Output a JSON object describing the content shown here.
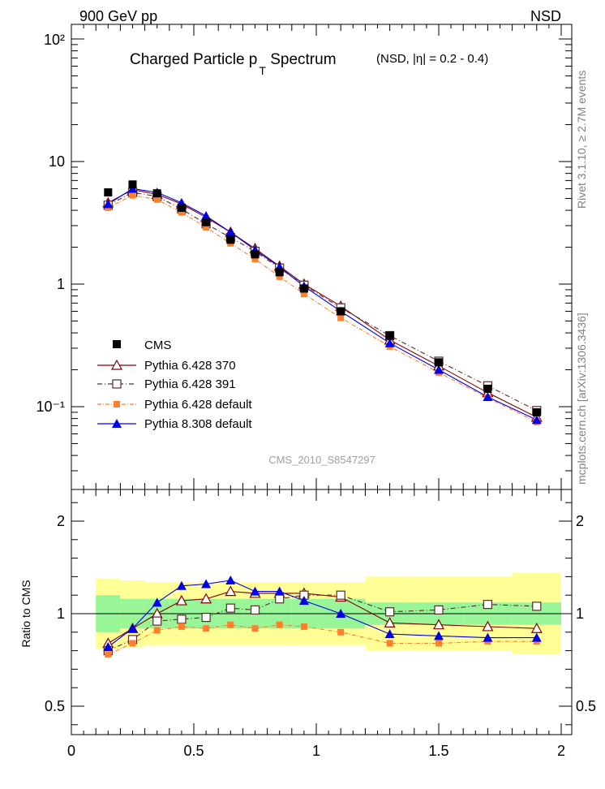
{
  "header": {
    "left": "900 GeV pp",
    "right": "NSD"
  },
  "side_labels": {
    "rivet": "Rivet 3.1.10, ≥ 2.7M events",
    "mcplots": "mcplots.cern.ch [arXiv:1306.3436]"
  },
  "chart_data": {
    "type": "scatter",
    "title": "Charged Particle p",
    "title_sub": "T",
    "title_rest": " Spectrum",
    "title_qualifier": "(NSD, |η| = 0.2 - 0.4)",
    "watermark": "CMS_2010_S8547297",
    "main": {
      "yscale": "log",
      "ylim": [
        0.025,
        120
      ],
      "xlim": [
        0,
        2.05
      ],
      "ytick_labels": [
        "10⁻¹",
        "1",
        "10",
        "10²"
      ]
    },
    "ratio": {
      "ylabel": "Ratio to CMS",
      "ylim": [
        0.3,
        2.35
      ],
      "ytick_labels": [
        "0.5",
        "1",
        "2"
      ],
      "xtick_labels": [
        "0",
        "0.5",
        "1",
        "1.5",
        "2"
      ]
    },
    "x": [
      0.15,
      0.25,
      0.35,
      0.45,
      0.55,
      0.65,
      0.75,
      0.85,
      0.95,
      1.1,
      1.3,
      1.5,
      1.7,
      1.9
    ],
    "bin_edges": [
      0.1,
      0.2,
      0.3,
      0.4,
      0.5,
      0.6,
      0.7,
      0.8,
      0.9,
      1.0,
      1.2,
      1.4,
      1.6,
      1.8,
      2.0
    ],
    "band_inner": [
      0.1,
      0.08,
      0.08,
      0.08,
      0.08,
      0.08,
      0.08,
      0.08,
      0.08,
      0.08,
      0.06,
      0.06,
      0.06,
      0.06
    ],
    "band_outer": [
      0.19,
      0.18,
      0.17,
      0.17,
      0.17,
      0.17,
      0.17,
      0.17,
      0.17,
      0.17,
      0.2,
      0.2,
      0.2,
      0.22
    ],
    "cms": {
      "name": "CMS",
      "values": [
        5.6,
        6.5,
        5.5,
        4.2,
        3.2,
        2.3,
        1.75,
        1.25,
        0.92,
        0.6,
        0.38,
        0.23,
        0.14,
        0.09
      ]
    },
    "series": [
      {
        "name": "Pythia 6.428 370",
        "color": "#800000",
        "marker": "open-triangle",
        "dash": "solid",
        "values": [
          4.6,
          5.9,
          5.4,
          4.5,
          3.5,
          2.65,
          1.95,
          1.4,
          1.0,
          0.66,
          0.35,
          0.215,
          0.13,
          0.082
        ],
        "ratio": [
          0.84,
          0.92,
          1.0,
          1.07,
          1.08,
          1.12,
          1.11,
          1.11,
          1.11,
          1.09,
          0.95,
          0.94,
          0.93,
          0.92
        ]
      },
      {
        "name": "Pythia 6.428 391",
        "color": "#5a2a2a",
        "marker": "open-square",
        "dash": "6,3,1,3",
        "values": [
          4.4,
          5.6,
          5.2,
          4.1,
          3.1,
          2.4,
          1.85,
          1.35,
          0.98,
          0.64,
          0.38,
          0.235,
          0.148,
          0.093
        ],
        "ratio": [
          0.8,
          0.86,
          0.96,
          0.97,
          0.98,
          1.03,
          1.02,
          1.08,
          1.1,
          1.1,
          1.01,
          1.02,
          1.05,
          1.04
        ]
      },
      {
        "name": "Pythia 6.428 default",
        "color": "#ff7f2a",
        "marker": "filled-square",
        "dash": "5,2,1,2",
        "values": [
          4.2,
          5.3,
          4.9,
          3.85,
          2.9,
          2.15,
          1.6,
          1.15,
          0.83,
          0.53,
          0.31,
          0.19,
          0.118,
          0.075
        ],
        "ratio": [
          0.78,
          0.84,
          0.91,
          0.93,
          0.92,
          0.94,
          0.92,
          0.94,
          0.93,
          0.9,
          0.84,
          0.84,
          0.85,
          0.85
        ]
      },
      {
        "name": "Pythia 8.308 default",
        "color": "#0000ee",
        "marker": "filled-triangle",
        "dash": "solid",
        "values": [
          4.5,
          6.0,
          5.6,
          4.6,
          3.6,
          2.65,
          1.9,
          1.38,
          0.96,
          0.6,
          0.33,
          0.2,
          0.12,
          0.078
        ],
        "ratio": [
          0.82,
          0.92,
          1.06,
          1.15,
          1.16,
          1.18,
          1.12,
          1.12,
          1.07,
          1.0,
          0.89,
          0.88,
          0.87,
          0.87
        ]
      }
    ]
  }
}
